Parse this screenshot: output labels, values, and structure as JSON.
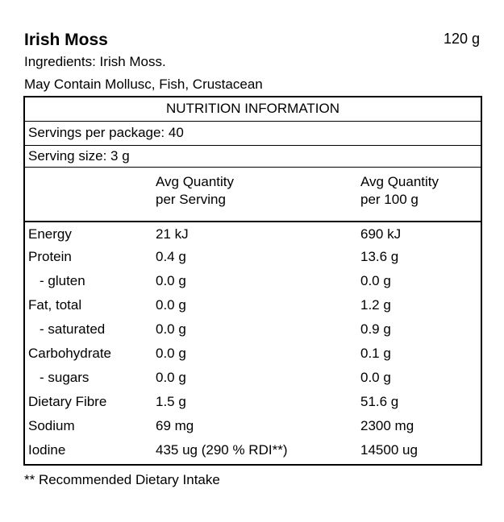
{
  "product": {
    "name": "Irish Moss",
    "net_weight": "120 g",
    "ingredients": "Ingredients: Irish Moss.",
    "allergen": "May Contain Mollusc, Fish, Crustacean"
  },
  "panel": {
    "heading": "NUTRITION INFORMATION",
    "servings_per_package": "Servings per package: 40",
    "serving_size": "Serving size: 3 g",
    "col_serving_l1": "Avg Quantity",
    "col_serving_l2": "per Serving",
    "col_100g_l1": "Avg Quantity",
    "col_100g_l2": "per 100 g",
    "rows": [
      {
        "name": "Energy",
        "per_serving": "21 kJ",
        "per_100g": "690 kJ"
      },
      {
        "name": "Protein",
        "per_serving": "0.4 g",
        "per_100g": "13.6 g"
      },
      {
        "name": "- gluten",
        "per_serving": "0.0 g",
        "per_100g": "0.0 g"
      },
      {
        "name": "Fat, total",
        "per_serving": "0.0 g",
        "per_100g": "1.2 g"
      },
      {
        "name": "- saturated",
        "per_serving": "0.0 g",
        "per_100g": "0.9 g"
      },
      {
        "name": "Carbohydrate",
        "per_serving": "0.0 g",
        "per_100g": "0.1 g"
      },
      {
        "name": "- sugars",
        "per_serving": "0.0 g",
        "per_100g": "0.0 g"
      },
      {
        "name": "Dietary Fibre",
        "per_serving": "1.5 g",
        "per_100g": "51.6 g"
      },
      {
        "name": "Sodium",
        "per_serving": "69 mg",
        "per_100g": "2300 mg"
      },
      {
        "name": "Iodine",
        "per_serving": "435 ug (290 % RDI**)",
        "per_100g": "14500 ug"
      }
    ]
  },
  "footnote": "** Recommended Dietary Intake"
}
